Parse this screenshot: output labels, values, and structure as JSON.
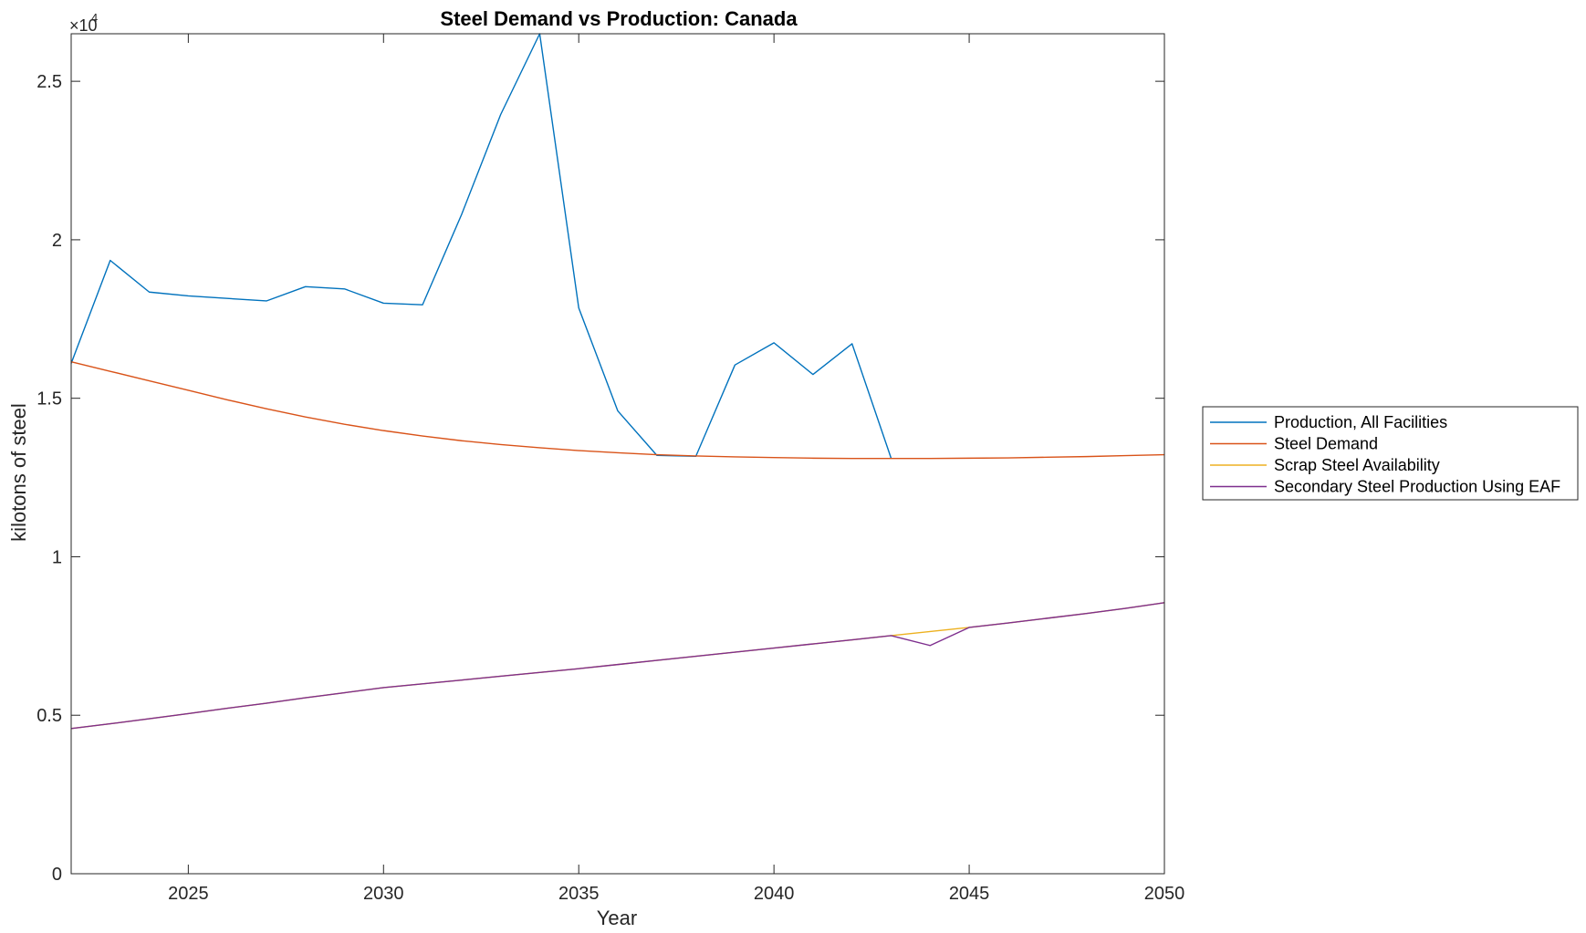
{
  "chart_data": {
    "type": "line",
    "title": "Steel Demand vs Production: Canada",
    "xlabel": "Year",
    "ylabel": "kilotons of steel",
    "exponent_base": "×10",
    "exponent_power": "4",
    "xlim": [
      2022,
      2050
    ],
    "ylim": [
      0,
      26500
    ],
    "xticks": [
      2025,
      2030,
      2035,
      2040,
      2045,
      2050
    ],
    "yticks": [
      0,
      5000,
      10000,
      15000,
      20000,
      25000
    ],
    "ytick_labels": [
      "0",
      "0.5",
      "1",
      "1.5",
      "2",
      "2.5"
    ],
    "grid": false,
    "legend_position": "outside-right",
    "series": [
      {
        "name": "Production, All Facilities",
        "color": "#0072BD",
        "x": [
          2022,
          2023,
          2024,
          2025,
          2026,
          2027,
          2028,
          2029,
          2030,
          2031,
          2032,
          2033,
          2034,
          2035,
          2036,
          2037,
          2038,
          2039,
          2040,
          2041,
          2042,
          2043
        ],
        "y": [
          16100,
          19350,
          18350,
          18230,
          18150,
          18070,
          18520,
          18450,
          18000,
          17950,
          20800,
          23950,
          26500,
          17850,
          14600,
          13200,
          13170,
          16050,
          16750,
          15750,
          16720,
          13110
        ]
      },
      {
        "name": "Steel Demand",
        "color": "#D95319",
        "x": [
          2022,
          2023,
          2024,
          2025,
          2026,
          2027,
          2028,
          2029,
          2030,
          2031,
          2032,
          2033,
          2034,
          2035,
          2036,
          2037,
          2038,
          2039,
          2040,
          2041,
          2042,
          2043,
          2044,
          2045,
          2046,
          2047,
          2048,
          2049,
          2050
        ],
        "y": [
          16150,
          15850,
          15550,
          15250,
          14950,
          14670,
          14410,
          14180,
          13980,
          13810,
          13660,
          13540,
          13440,
          13350,
          13280,
          13220,
          13180,
          13150,
          13130,
          13110,
          13100,
          13100,
          13100,
          13110,
          13120,
          13140,
          13160,
          13190,
          13220
        ]
      },
      {
        "name": "Scrap Steel Availability",
        "color": "#EDB120",
        "x": [
          2022,
          2023,
          2024,
          2025,
          2026,
          2027,
          2028,
          2029,
          2030,
          2031,
          2032,
          2033,
          2034,
          2035,
          2036,
          2037,
          2038,
          2039,
          2040,
          2041,
          2042,
          2043,
          2044,
          2045,
          2046,
          2047,
          2048,
          2049,
          2050
        ],
        "y": [
          4580,
          4730,
          4890,
          5050,
          5220,
          5380,
          5550,
          5710,
          5870,
          5990,
          6110,
          6230,
          6350,
          6470,
          6600,
          6730,
          6860,
          6990,
          7120,
          7250,
          7380,
          7510,
          7640,
          7770,
          7910,
          8060,
          8210,
          8370,
          8550
        ]
      },
      {
        "name": "Secondary Steel Production Using EAF",
        "color": "#7E2F8E",
        "x": [
          2022,
          2023,
          2024,
          2025,
          2026,
          2027,
          2028,
          2029,
          2030,
          2031,
          2032,
          2033,
          2034,
          2035,
          2036,
          2037,
          2038,
          2039,
          2040,
          2041,
          2042,
          2043,
          2044,
          2045,
          2046,
          2047,
          2048,
          2049,
          2050
        ],
        "y": [
          4580,
          4730,
          4890,
          5050,
          5220,
          5380,
          5550,
          5710,
          5870,
          5990,
          6110,
          6230,
          6350,
          6470,
          6600,
          6730,
          6860,
          6990,
          7120,
          7250,
          7380,
          7510,
          7200,
          7770,
          7910,
          8060,
          8210,
          8370,
          8550
        ]
      }
    ]
  }
}
